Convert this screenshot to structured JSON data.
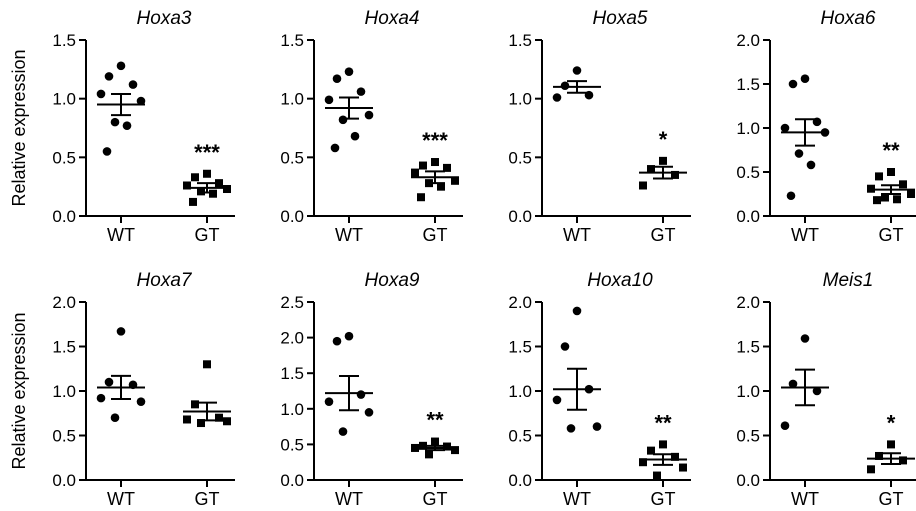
{
  "chart_data": [
    {
      "type": "scatter",
      "title": "Hoxa3",
      "ylabel": "Relative expression",
      "ylim": [
        0,
        1.5
      ],
      "yticks": [
        "0.0",
        "0.5",
        "1.0",
        "1.5"
      ],
      "categories": [
        "WT",
        "GT"
      ],
      "groups": [
        {
          "category": "WT",
          "marker": "circle",
          "points": [
            1.28,
            1.19,
            1.12,
            1.04,
            0.98,
            0.8,
            0.77,
            0.55
          ],
          "mean": 0.95,
          "sem_low": 0.86,
          "sem_high": 1.04
        },
        {
          "category": "GT",
          "marker": "square",
          "points": [
            0.36,
            0.33,
            0.28,
            0.26,
            0.23,
            0.21,
            0.19,
            0.12
          ],
          "mean": 0.24,
          "sem_low": 0.2,
          "sem_high": 0.28,
          "significance": "***"
        }
      ]
    },
    {
      "type": "scatter",
      "title": "Hoxa4",
      "ylabel": "",
      "ylim": [
        0,
        1.5
      ],
      "yticks": [
        "0.0",
        "0.5",
        "1.0",
        "1.5"
      ],
      "categories": [
        "WT",
        "GT"
      ],
      "groups": [
        {
          "category": "WT",
          "marker": "circle",
          "points": [
            1.23,
            1.17,
            1.06,
            0.99,
            0.86,
            0.82,
            0.68,
            0.58
          ],
          "mean": 0.92,
          "sem_low": 0.83,
          "sem_high": 1.01
        },
        {
          "category": "GT",
          "marker": "square",
          "points": [
            0.46,
            0.43,
            0.41,
            0.37,
            0.3,
            0.28,
            0.25,
            0.16
          ],
          "mean": 0.33,
          "sem_low": 0.28,
          "sem_high": 0.38,
          "significance": "***"
        }
      ]
    },
    {
      "type": "scatter",
      "title": "Hoxa5",
      "ylabel": "",
      "ylim": [
        0,
        1.5
      ],
      "yticks": [
        "0.0",
        "0.5",
        "1.0",
        "1.5"
      ],
      "categories": [
        "WT",
        "GT"
      ],
      "groups": [
        {
          "category": "WT",
          "marker": "circle",
          "points": [
            1.24,
            1.11,
            1.03,
            1.01
          ],
          "mean": 1.1,
          "sem_low": 1.05,
          "sem_high": 1.15
        },
        {
          "category": "GT",
          "marker": "square",
          "points": [
            0.47,
            0.4,
            0.35,
            0.26
          ],
          "mean": 0.37,
          "sem_low": 0.32,
          "sem_high": 0.42,
          "significance": "*"
        }
      ]
    },
    {
      "type": "scatter",
      "title": "Hoxa6",
      "ylabel": "",
      "ylim": [
        0,
        2.0
      ],
      "yticks": [
        "0.0",
        "0.5",
        "1.0",
        "1.5",
        "2.0"
      ],
      "categories": [
        "WT",
        "GT"
      ],
      "groups": [
        {
          "category": "WT",
          "marker": "circle",
          "points": [
            1.56,
            1.5,
            1.07,
            1.0,
            0.95,
            0.71,
            0.58,
            0.23
          ],
          "mean": 0.95,
          "sem_low": 0.8,
          "sem_high": 1.1
        },
        {
          "category": "GT",
          "marker": "square",
          "points": [
            0.5,
            0.45,
            0.36,
            0.31,
            0.25,
            0.21,
            0.19,
            0.18
          ],
          "mean": 0.3,
          "sem_low": 0.25,
          "sem_high": 0.35,
          "significance": "**"
        }
      ]
    },
    {
      "type": "scatter",
      "title": "Hoxa7",
      "ylabel": "Relative expression",
      "ylim": [
        0,
        2.0
      ],
      "yticks": [
        "0.0",
        "0.5",
        "1.0",
        "1.5",
        "2.0"
      ],
      "categories": [
        "WT",
        "GT"
      ],
      "groups": [
        {
          "category": "WT",
          "marker": "circle",
          "points": [
            1.67,
            1.1,
            1.07,
            0.92,
            0.88,
            0.7
          ],
          "mean": 1.04,
          "sem_low": 0.91,
          "sem_high": 1.17
        },
        {
          "category": "GT",
          "marker": "square",
          "points": [
            1.3,
            0.85,
            0.7,
            0.68,
            0.66,
            0.64
          ],
          "mean": 0.77,
          "sem_low": 0.67,
          "sem_high": 0.87
        },
        {
          "category": "GT",
          "marker": "square",
          "points": [],
          "mean": null
        }
      ]
    },
    {
      "type": "scatter",
      "title": "Hoxa9",
      "ylabel": "",
      "ylim": [
        0,
        2.5
      ],
      "yticks": [
        "0.0",
        "0.5",
        "1.0",
        "1.5",
        "2.0",
        "2.5"
      ],
      "categories": [
        "WT",
        "GT"
      ],
      "groups": [
        {
          "category": "WT",
          "marker": "circle",
          "points": [
            2.02,
            1.95,
            1.2,
            1.1,
            0.95,
            0.68
          ],
          "mean": 1.22,
          "sem_low": 0.98,
          "sem_high": 1.46
        },
        {
          "category": "GT",
          "marker": "square",
          "points": [
            0.54,
            0.48,
            0.47,
            0.45,
            0.42,
            0.36
          ],
          "mean": 0.45,
          "sem_low": 0.42,
          "sem_high": 0.48,
          "significance": "**"
        }
      ]
    },
    {
      "type": "scatter",
      "title": "Hoxa10",
      "ylabel": "",
      "ylim": [
        0,
        2.0
      ],
      "yticks": [
        "0.0",
        "0.5",
        "1.0",
        "1.5",
        "2.0"
      ],
      "categories": [
        "WT",
        "GT"
      ],
      "groups": [
        {
          "category": "WT",
          "marker": "circle",
          "points": [
            1.9,
            1.5,
            1.02,
            0.9,
            0.6,
            0.58
          ],
          "mean": 1.02,
          "sem_low": 0.79,
          "sem_high": 1.25
        },
        {
          "category": "GT",
          "marker": "square",
          "points": [
            0.4,
            0.33,
            0.26,
            0.2,
            0.14,
            0.05
          ],
          "mean": 0.23,
          "sem_low": 0.17,
          "sem_high": 0.29,
          "significance": "**"
        }
      ]
    },
    {
      "type": "scatter",
      "title": "Meis1",
      "ylabel": "",
      "ylim": [
        0,
        2.0
      ],
      "yticks": [
        "0.0",
        "0.5",
        "1.0",
        "1.5",
        "2.0"
      ],
      "categories": [
        "WT",
        "GT"
      ],
      "groups": [
        {
          "category": "WT",
          "marker": "circle",
          "points": [
            1.59,
            1.08,
            1.0,
            0.61
          ],
          "mean": 1.04,
          "sem_low": 0.84,
          "sem_high": 1.24
        },
        {
          "category": "GT",
          "marker": "square",
          "points": [
            0.4,
            0.27,
            0.22,
            0.12
          ],
          "mean": 0.24,
          "sem_low": 0.18,
          "sem_high": 0.3,
          "significance": "*"
        }
      ]
    }
  ]
}
